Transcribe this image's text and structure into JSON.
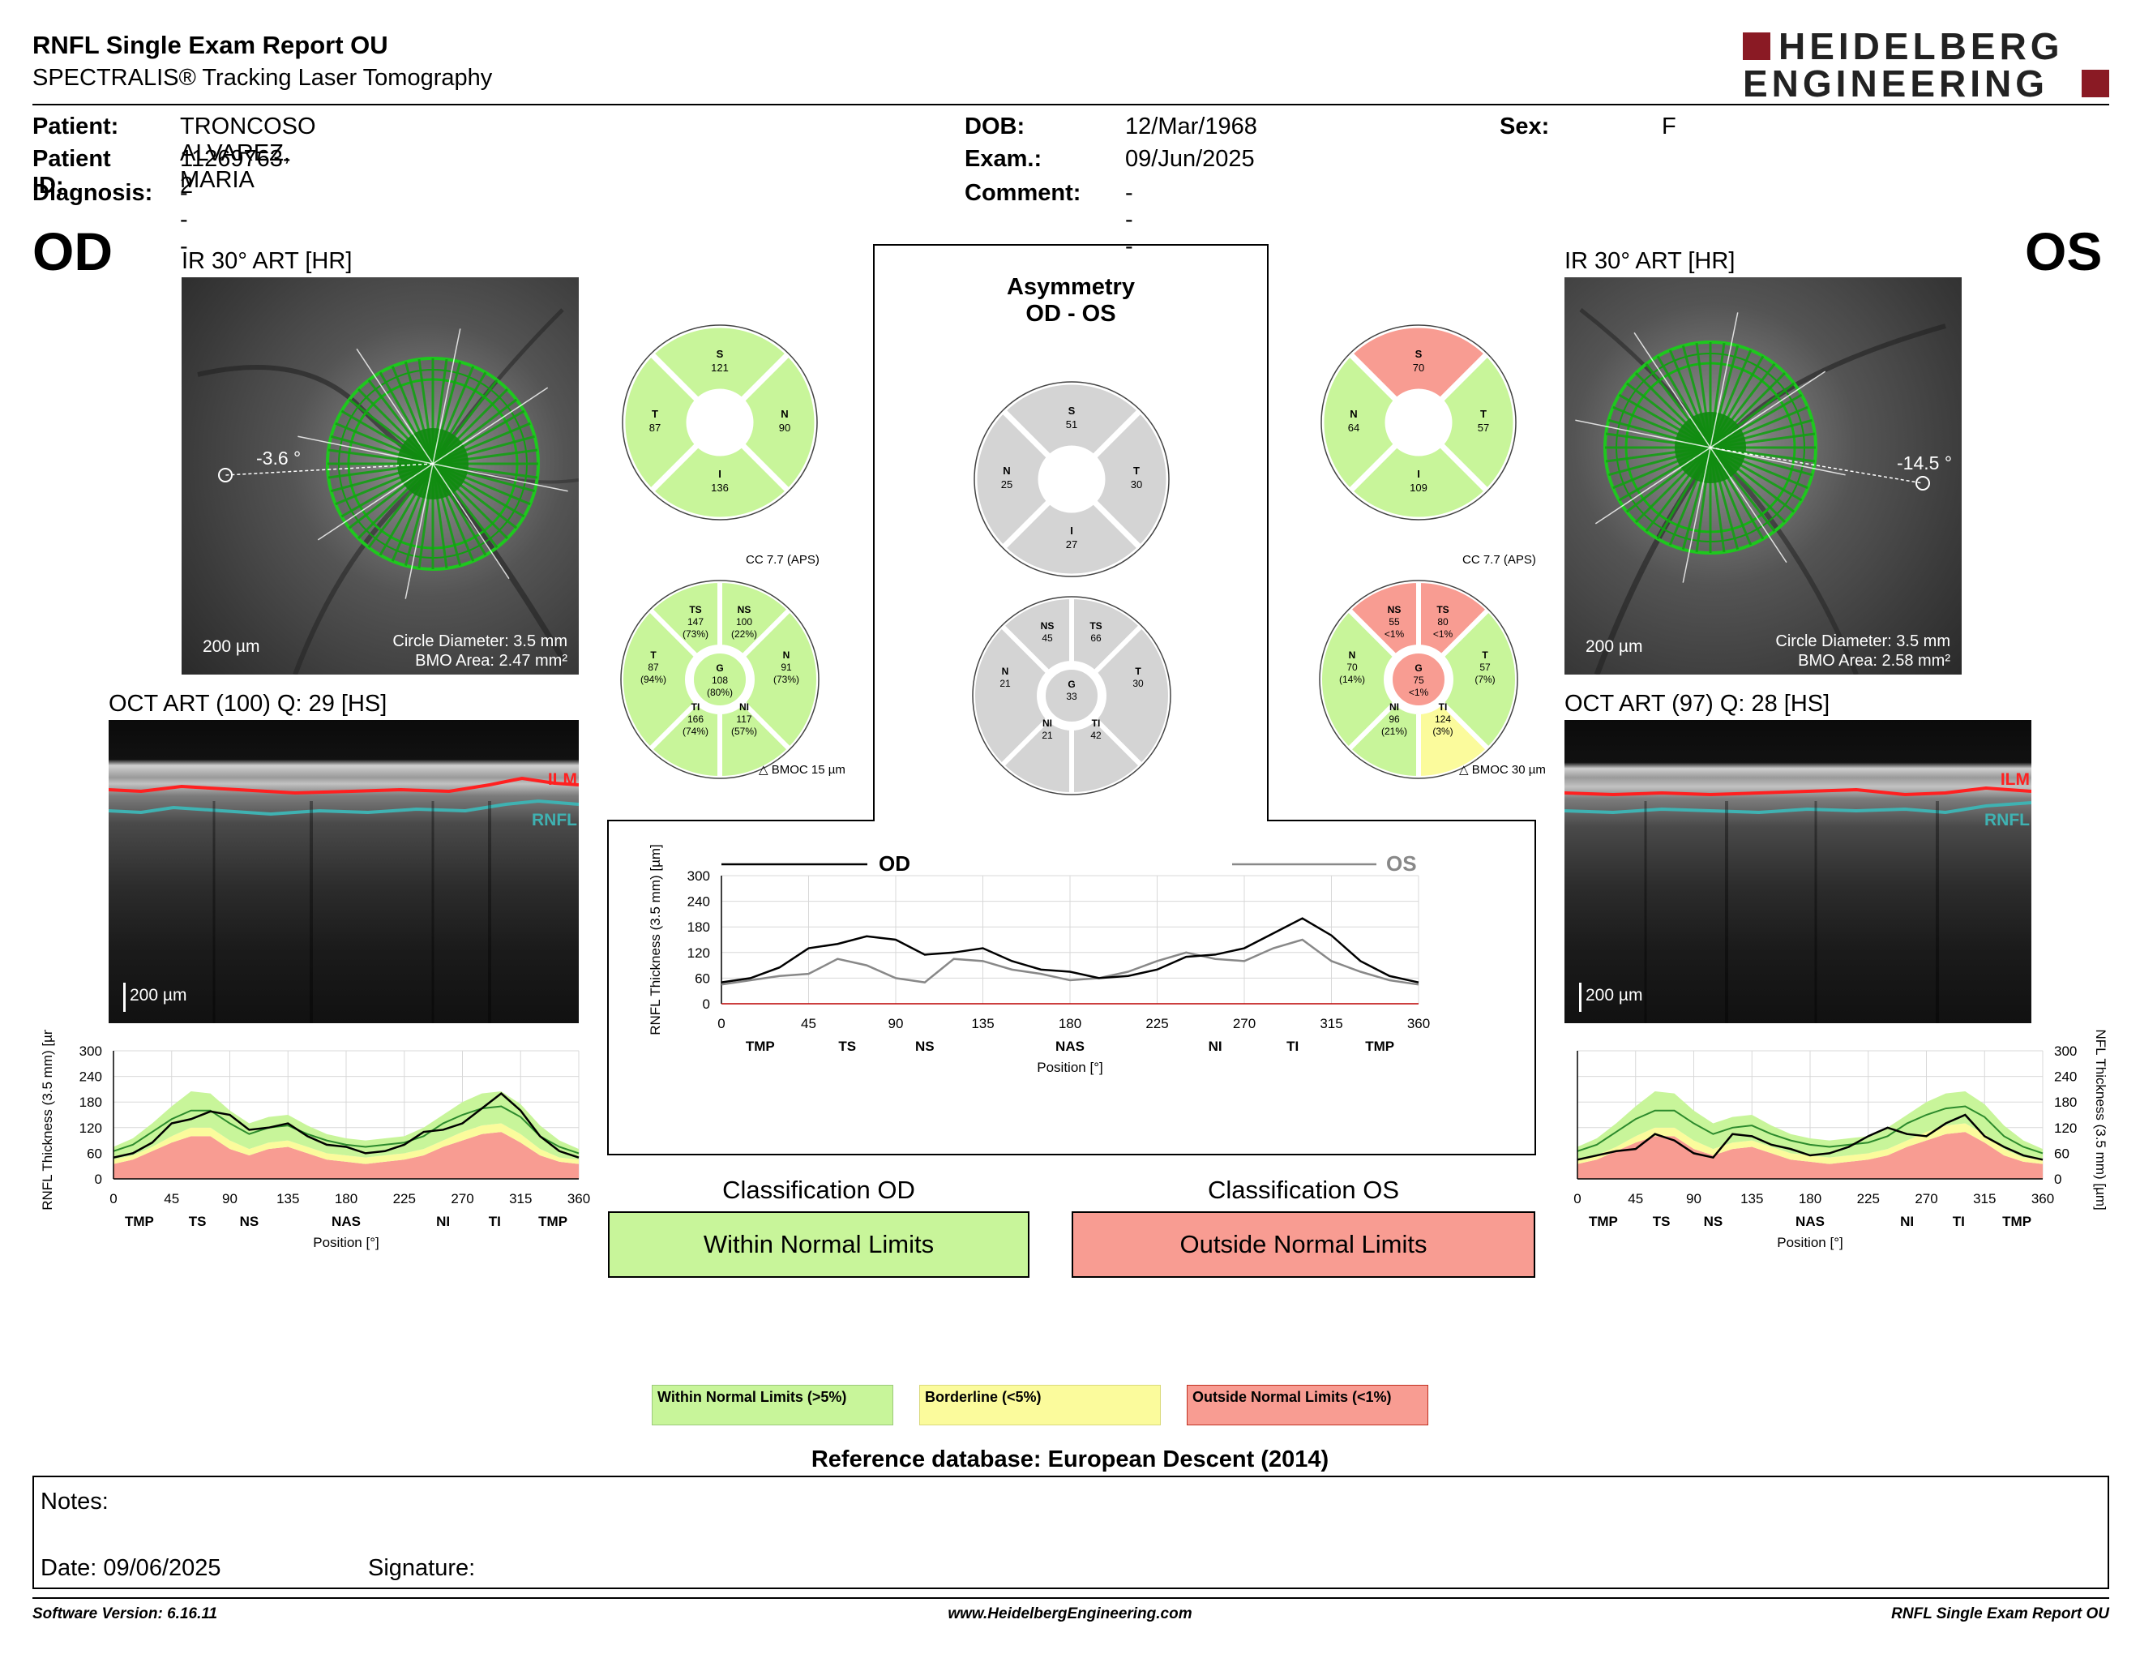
{
  "report": {
    "title": "RNFL Single Exam Report OU",
    "subtitle": "SPECTRALIS® Tracking Laser Tomography"
  },
  "brand": {
    "line1": "HEIDELBERG",
    "line2": "ENGINEERING",
    "color": "#8a1a24"
  },
  "patient": {
    "patient_label": "Patient:",
    "patient_value": "TRONCOSO ALVAREZ, MARIA",
    "id_label": "Patient ID:",
    "id_value": "11269763-2",
    "diagnosis_label": "Diagnosis:",
    "diagnosis_value": "---",
    "dob_label": "DOB:",
    "dob_value": "12/Mar/1968",
    "exam_label": "Exam.:",
    "exam_value": "09/Jun/2025",
    "comment_label": "Comment:",
    "comment_value": "---",
    "sex_label": "Sex:",
    "sex_value": "F"
  },
  "od": {
    "eye": "OD",
    "fundus": {
      "title": "IR 30° ART [HR]",
      "angle": "-3.6 °",
      "scale": "200 µm",
      "circle": "Circle Diameter: 3.5 mm",
      "bmo": "BMO Area: 2.47 mm²"
    },
    "oct": {
      "title": "OCT ART (100) Q: 29 [HS]",
      "scale": "200 µm",
      "ilm": "ILM",
      "rnfl": "RNFL"
    },
    "pie": {
      "S": {
        "label": "S",
        "value": "121",
        "class": "wnl"
      },
      "N": {
        "label": "N",
        "value": "90",
        "class": "wnl"
      },
      "I": {
        "label": "I",
        "value": "136",
        "class": "wnl"
      },
      "T": {
        "label": "T",
        "value": "87",
        "class": "wnl"
      }
    },
    "sectors": {
      "cc": "CC 7.7 (APS)",
      "bmo": "BMOC 15 µm",
      "TS": {
        "label": "TS",
        "value": "147",
        "pct": "(73%)",
        "class": "wnl"
      },
      "NS": {
        "label": "NS",
        "value": "100",
        "pct": "(22%)",
        "class": "wnl"
      },
      "N": {
        "label": "N",
        "value": "91",
        "pct": "(73%)",
        "class": "wnl"
      },
      "NI": {
        "label": "NI",
        "value": "117",
        "pct": "(57%)",
        "class": "wnl"
      },
      "TI": {
        "label": "TI",
        "value": "166",
        "pct": "(74%)",
        "class": "wnl"
      },
      "T": {
        "label": "T",
        "value": "87",
        "pct": "(94%)",
        "class": "wnl"
      },
      "G": {
        "label": "G",
        "value": "108",
        "pct": "(80%)",
        "class": "wnl"
      }
    },
    "classification": {
      "title": "Classification OD",
      "value": "Within Normal Limits",
      "class": "wnl"
    }
  },
  "os": {
    "eye": "OS",
    "fundus": {
      "title": "IR 30° ART [HR]",
      "angle": "-14.5 °",
      "scale": "200 µm",
      "circle": "Circle Diameter: 3.5 mm",
      "bmo": "BMO Area: 2.58 mm²"
    },
    "oct": {
      "title": "OCT ART (97) Q: 28 [HS]",
      "scale": "200 µm",
      "ilm": "ILM",
      "rnfl": "RNFL"
    },
    "pie": {
      "S": {
        "label": "S",
        "value": "70",
        "class": "onl"
      },
      "N": {
        "label": "N",
        "value": "64",
        "class": "wnl"
      },
      "I": {
        "label": "I",
        "value": "109",
        "class": "wnl"
      },
      "T": {
        "label": "T",
        "value": "57",
        "class": "wnl"
      }
    },
    "sectors": {
      "cc": "CC 7.7 (APS)",
      "bmo": "BMOC 30 µm",
      "NS": {
        "label": "NS",
        "value": "55",
        "pct": "<1%",
        "class": "onl"
      },
      "TS": {
        "label": "TS",
        "value": "80",
        "pct": "<1%",
        "class": "onl"
      },
      "T": {
        "label": "T",
        "value": "57",
        "pct": "(7%)",
        "class": "wnl"
      },
      "TI": {
        "label": "TI",
        "value": "124",
        "pct": "(3%)",
        "class": "bl"
      },
      "NI": {
        "label": "NI",
        "value": "96",
        "pct": "(21%)",
        "class": "wnl"
      },
      "N": {
        "label": "N",
        "value": "70",
        "pct": "(14%)",
        "class": "wnl"
      },
      "G": {
        "label": "G",
        "value": "75",
        "pct": "<1%",
        "class": "onl"
      }
    },
    "classification": {
      "title": "Classification OS",
      "value": "Outside Normal Limits",
      "class": "onl"
    }
  },
  "asymmetry": {
    "title1": "Asymmetry",
    "title2": "OD - OS",
    "pie": {
      "S": {
        "label": "S",
        "value": "51"
      },
      "N": {
        "label": "N",
        "value": "25"
      },
      "T": {
        "label": "T",
        "value": "30"
      },
      "I": {
        "label": "I",
        "value": "27"
      }
    },
    "sectors": {
      "NS": {
        "label": "NS",
        "value": "45"
      },
      "TS": {
        "label": "TS",
        "value": "66"
      },
      "T": {
        "label": "T",
        "value": "30"
      },
      "TI": {
        "label": "TI",
        "value": "42"
      },
      "NI": {
        "label": "NI",
        "value": "21"
      },
      "N": {
        "label": "N",
        "value": "21"
      },
      "G": {
        "label": "G",
        "value": "33"
      }
    }
  },
  "graph_common": {
    "ylabel": "RNFL Thickness (3.5 mm) [µm]",
    "xlabel": "Position [°]",
    "od_legend": "OD",
    "os_legend": "OS"
  },
  "legend": {
    "wnl": "Within Normal Limits (>5%)",
    "bl": "Borderline (<5%)",
    "onl": "Outside Normal Limits (<1%)"
  },
  "reference": "Reference database: European Descent (2014)",
  "notes": {
    "label": "Notes:",
    "date": "Date: 09/06/2025",
    "signature": "Signature:"
  },
  "footer": {
    "version": "Software Version: 6.16.11",
    "website": "www.HeidelbergEngineering.com",
    "report": "RNFL Single Exam Report OU"
  },
  "colors": {
    "wnl": "#c8f59a",
    "bl": "#fbfb9c",
    "onl": "#f89c92",
    "gray": "#d4d4d4"
  },
  "chart_data": {
    "type": "line",
    "xlabel": "Position [°]",
    "ylabel": "RNFL Thickness (3.5 mm) [µm]",
    "xlim": [
      0,
      360
    ],
    "ylim": [
      0,
      300
    ],
    "xticks": [
      0,
      45,
      90,
      135,
      180,
      225,
      270,
      315,
      360
    ],
    "yticks": [
      0,
      60,
      120,
      180,
      240,
      300
    ],
    "regions": [
      {
        "label": "TMP",
        "x": 20
      },
      {
        "label": "TS",
        "x": 65
      },
      {
        "label": "NS",
        "x": 105
      },
      {
        "label": "NAS",
        "x": 180
      },
      {
        "label": "NI",
        "x": 255
      },
      {
        "label": "TI",
        "x": 295
      },
      {
        "label": "TMP",
        "x": 340
      }
    ],
    "x": [
      0,
      15,
      30,
      45,
      60,
      75,
      90,
      105,
      120,
      135,
      150,
      165,
      180,
      195,
      210,
      225,
      240,
      255,
      270,
      285,
      300,
      315,
      330,
      345,
      360
    ],
    "normal_bands": {
      "lower_onl": [
        35,
        45,
        65,
        85,
        100,
        100,
        70,
        55,
        70,
        75,
        60,
        45,
        40,
        35,
        40,
        45,
        55,
        75,
        90,
        105,
        110,
        85,
        55,
        40,
        35
      ],
      "upper_onl_bl": [
        45,
        55,
        75,
        100,
        120,
        120,
        90,
        70,
        85,
        90,
        75,
        60,
        55,
        50,
        55,
        60,
        70,
        90,
        110,
        125,
        130,
        105,
        70,
        50,
        45
      ],
      "upper_bl_wnl": [
        55,
        70,
        95,
        125,
        145,
        145,
        115,
        90,
        105,
        110,
        90,
        75,
        70,
        65,
        70,
        75,
        85,
        110,
        130,
        150,
        155,
        130,
        90,
        65,
        55
      ],
      "upper_wnl": [
        75,
        95,
        130,
        170,
        205,
        200,
        160,
        130,
        145,
        150,
        125,
        105,
        95,
        90,
        95,
        100,
        120,
        150,
        180,
        200,
        205,
        175,
        125,
        90,
        70
      ]
    },
    "mean_normal": [
      65,
      80,
      110,
      140,
      160,
      160,
      130,
      105,
      120,
      125,
      105,
      90,
      80,
      75,
      80,
      85,
      100,
      130,
      150,
      165,
      170,
      145,
      100,
      75,
      60
    ],
    "series": [
      {
        "name": "OD",
        "values": [
          50,
          60,
          85,
          130,
          140,
          158,
          150,
          115,
          120,
          130,
          100,
          80,
          75,
          60,
          65,
          80,
          110,
          115,
          130,
          165,
          200,
          160,
          100,
          65,
          50
        ]
      },
      {
        "name": "OS",
        "values": [
          45,
          55,
          65,
          70,
          105,
          90,
          60,
          50,
          105,
          100,
          80,
          70,
          55,
          60,
          75,
          100,
          120,
          105,
          100,
          130,
          150,
          100,
          75,
          55,
          45
        ]
      }
    ]
  }
}
